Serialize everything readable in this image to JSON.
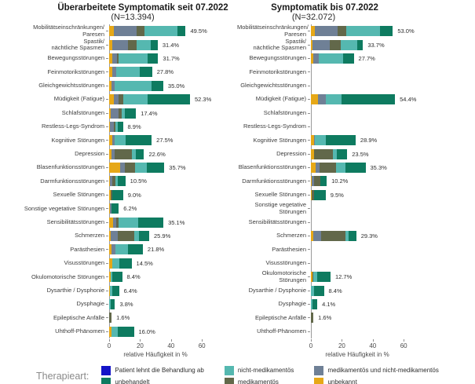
{
  "axis": {
    "ticks": [
      0,
      20,
      40,
      60
    ],
    "tick_labels": [
      "0",
      "20",
      "40",
      "60"
    ],
    "max": 60,
    "title": "relative Häufigkeit in %"
  },
  "legend": {
    "title": "Therapieart:",
    "items": [
      {
        "name": "swatch-patient-lehnt-behandlung-ab",
        "label": "Patient lehnt die Behandlung ab",
        "color": "#1414C8"
      },
      {
        "name": "swatch-unbehandelt",
        "label": "unbehandelt",
        "color": "#0E7B60"
      },
      {
        "name": "swatch-nicht-medikamentoes",
        "label": "nicht-medikamentös",
        "color": "#55B8B0"
      },
      {
        "name": "swatch-medikamentoes",
        "label": "medikamentös",
        "color": "#62684A"
      },
      {
        "name": "swatch-medikamentoes-und-nicht-medikamentoes",
        "label": "medikamentös und nicht-medikamentös",
        "color": "#6F8096"
      },
      {
        "name": "swatch-unbekannt",
        "label": "unbekannt",
        "color": "#E6A817"
      }
    ]
  },
  "chart_data": [
    {
      "type": "bar",
      "orientation": "horizontal",
      "stacked": true,
      "title": "Überarbeitete Symptomatik seit 07.2022",
      "subtitle": "(N=13.394)",
      "xlabel": "relative Häufigkeit in %",
      "xlim": [
        0,
        60
      ],
      "xticks": [
        0,
        20,
        40,
        60
      ],
      "categories": [
        "Mobilitätseinschränkungen/\nParesen",
        "Spastik/\nnächtliche Spasmen",
        "Bewegungsstörungen",
        "Feinmotorikstörungen",
        "Gleichgewichtsstörungen",
        "Müdigkeit (Fatigue)",
        "Schlafstörungen",
        "Restless-Legs-Syndrom",
        "Kognitive Störungen",
        "Depression",
        "Blasenfunktionsstörungen",
        "Darmfunktionsstörungen",
        "Sexuelle Störungen",
        "Sonstige vegetative Störungen",
        "Sensibilitätsstörungen",
        "Schmerzen",
        "Parästhesien",
        "Visusstörungen",
        "Okulomotorische Störungen",
        "Dysarthie / Dysphonie",
        "Dysphagie",
        "Epileptische Anfälle",
        "Uhthoff-Phänomen"
      ],
      "totals": [
        49.5,
        31.4,
        31.7,
        27.8,
        35.0,
        52.3,
        17.4,
        8.9,
        27.5,
        22.6,
        35.7,
        10.5,
        9.0,
        6.2,
        35.1,
        25.9,
        21.8,
        14.5,
        8.4,
        6.4,
        3.8,
        1.6,
        16.0
      ],
      "total_labels": [
        "49.5%",
        "31.4%",
        "31.7%",
        "27.8%",
        "35.0%",
        "52.3%",
        "17.4%",
        "8.9%",
        "27.5%",
        "22.6%",
        "35.7%",
        "10.5%",
        "9.0%",
        "6.2%",
        "35.1%",
        "25.9%",
        "21.8%",
        "14.5%",
        "8.4%",
        "6.4%",
        "3.8%",
        "1.6%",
        "16.0%"
      ],
      "series": [
        {
          "name": "unbekannt",
          "color": "#E6A817",
          "values": [
            3.0,
            2.0,
            2.0,
            2.0,
            1.5,
            3.0,
            1.0,
            0.5,
            2.0,
            1.5,
            7.0,
            0.7,
            0.8,
            0.7,
            2.5,
            1.0,
            1.5,
            2.0,
            1.0,
            0.6,
            0,
            0,
            1.5
          ]
        },
        {
          "name": "medikamentös und nicht-medikamentös",
          "color": "#6F8096",
          "values": [
            15.0,
            10.0,
            3.0,
            2.5,
            2.0,
            3.0,
            5.0,
            2.5,
            1.5,
            2.0,
            3.0,
            1.3,
            0,
            1.0,
            2.0,
            4.4,
            2.5,
            0,
            0,
            0,
            0,
            0,
            0
          ]
        },
        {
          "name": "medikamentös",
          "color": "#62684A",
          "values": [
            5.0,
            6.0,
            1.0,
            0,
            0,
            3.0,
            2.0,
            1.0,
            0,
            11.0,
            7.0,
            2.0,
            1.2,
            0,
            1.5,
            11.0,
            0,
            0,
            0,
            0,
            0,
            1.6,
            0
          ]
        },
        {
          "name": "nicht-medikamentös",
          "color": "#55B8B0",
          "values": [
            21.0,
            9.0,
            19.0,
            15.3,
            24.0,
            16.0,
            2.0,
            1.5,
            7.0,
            2.6,
            7.5,
            1.5,
            0,
            0,
            13.0,
            3.0,
            8.0,
            4.5,
            1.0,
            1.4,
            0.8,
            0,
            4.0
          ]
        },
        {
          "name": "unbehandelt",
          "color": "#0E7B60",
          "values": [
            5.5,
            4.4,
            6.7,
            8.0,
            7.5,
            27.3,
            7.4,
            3.4,
            17.0,
            5.5,
            11.2,
            5.0,
            7.0,
            4.5,
            16.1,
            6.5,
            9.8,
            8.0,
            6.4,
            4.4,
            3.0,
            0,
            10.5
          ]
        },
        {
          "name": "Patient lehnt die Behandlung ab",
          "color": "#1414C8",
          "values": [
            0,
            0,
            0,
            0,
            0,
            0,
            0,
            0,
            0,
            0,
            0,
            0,
            0,
            0,
            0,
            0,
            0,
            0,
            0,
            0,
            0,
            0,
            0
          ]
        }
      ]
    },
    {
      "type": "bar",
      "orientation": "horizontal",
      "stacked": true,
      "title": "Symptomatik bis 07.2022",
      "subtitle": "(N=32.072)",
      "xlabel": "relative Häufigkeit in %",
      "xlim": [
        0,
        60
      ],
      "xticks": [
        0,
        20,
        40,
        60
      ],
      "categories": [
        "Mobilitätseinschränkungen/\nParesen",
        "Spastik/\nnächtliche Spasmen",
        "Bewegungsstörungen",
        "Feinmotorikstörungen",
        "Gleichgewichtsstörungen",
        "Müdigkeit (Fatigue)",
        "Schlafstörungen",
        "Restless-Legs-Syndrom",
        "Kognitive Störungen",
        "Depression",
        "Blasenfunktionsstörungen",
        "Darmfunktionsstörungen",
        "Sexuelle Störungen",
        "Sonstige vegetative Störungen",
        "Sensibilitätsstörungen",
        "Schmerzen",
        "Parästhesien",
        "Visusstörungen",
        "Okulomotorische Störungen",
        "Dysarthie / Dysphonie",
        "Dysphagie",
        "Epileptische Anfälle",
        "Uhthoff-Phänomen"
      ],
      "totals": [
        53.0,
        33.7,
        27.7,
        null,
        null,
        54.4,
        null,
        null,
        28.9,
        23.5,
        35.3,
        10.2,
        9.5,
        null,
        null,
        29.3,
        null,
        null,
        12.7,
        8.4,
        4.1,
        1.6,
        null
      ],
      "total_labels": [
        "53.0%",
        "33.7%",
        "27.7%",
        "",
        "",
        "54.4%",
        "",
        "",
        "28.9%",
        "23.5%",
        "35.3%",
        "10.2%",
        "9.5%",
        "",
        "",
        "29.3%",
        "",
        "",
        "12.7%",
        "8.4%",
        "4.1%",
        "1.6%",
        ""
      ],
      "series": [
        {
          "name": "unbekannt",
          "color": "#E6A817",
          "values": [
            2.5,
            1.0,
            1.5,
            0,
            0,
            4.5,
            0,
            0,
            2.0,
            2.0,
            3.0,
            0.7,
            0.5,
            0,
            0,
            1.3,
            0,
            0,
            1.0,
            0,
            0,
            0,
            0
          ]
        },
        {
          "name": "medikamentös und nicht-medikamentös",
          "color": "#6F8096",
          "values": [
            15.0,
            11.0,
            3.5,
            0,
            0,
            5.0,
            0,
            0,
            0.5,
            0,
            2.5,
            1.5,
            0,
            0,
            0,
            5.5,
            0,
            0,
            0,
            0,
            0,
            0,
            0
          ]
        },
        {
          "name": "medikamentös",
          "color": "#62684A",
          "values": [
            5.5,
            7.5,
            0,
            0,
            0,
            0,
            0,
            0,
            0,
            12.0,
            10.8,
            4.0,
            1.5,
            0,
            0,
            15.5,
            0,
            0,
            0.7,
            0,
            0,
            1.6,
            0
          ]
        },
        {
          "name": "nicht-medikamentös",
          "color": "#55B8B0",
          "values": [
            21.5,
            10.5,
            16.0,
            0,
            0,
            10.5,
            0,
            0,
            7.0,
            3.0,
            6.0,
            0,
            0,
            0,
            0,
            2.0,
            0,
            0,
            2.5,
            2.0,
            1.0,
            0,
            0
          ]
        },
        {
          "name": "unbehandelt",
          "color": "#0E7B60",
          "values": [
            8.5,
            3.7,
            6.7,
            0,
            0,
            34.4,
            0,
            0,
            19.4,
            6.5,
            13.0,
            4.0,
            7.5,
            0,
            0,
            5.0,
            0,
            0,
            8.5,
            6.4,
            3.1,
            0,
            0
          ]
        },
        {
          "name": "Patient lehnt die Behandlung ab",
          "color": "#1414C8",
          "values": [
            0,
            0,
            0,
            0,
            0,
            0,
            0,
            0,
            0,
            0,
            0,
            0,
            0,
            0,
            0,
            0,
            0,
            0,
            0,
            0,
            0,
            0,
            0
          ]
        }
      ]
    }
  ]
}
